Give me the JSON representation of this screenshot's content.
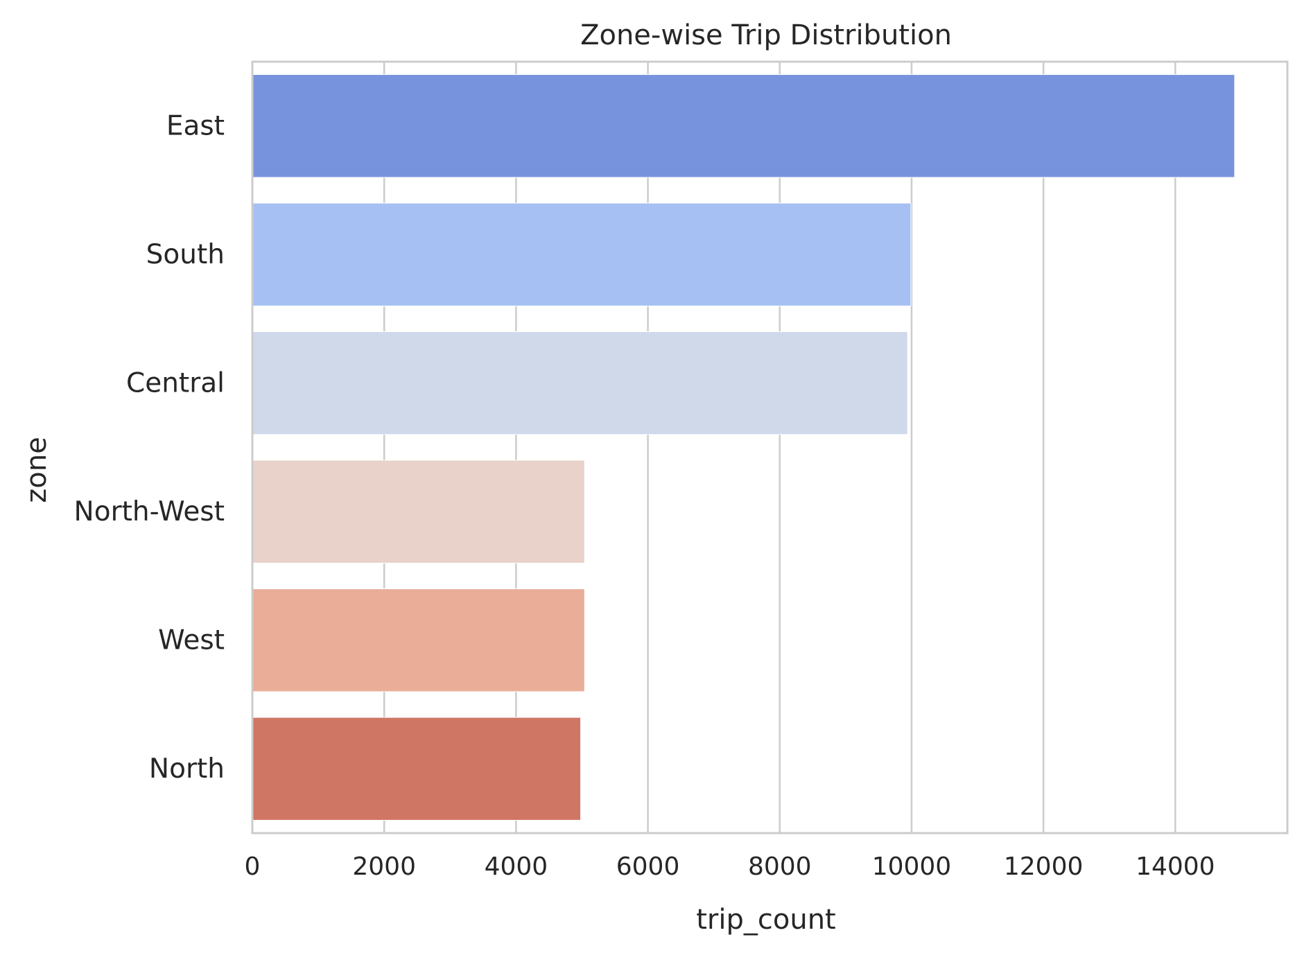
{
  "chart_data": {
    "type": "bar",
    "orientation": "horizontal",
    "title": "Zone-wise Trip Distribution",
    "xlabel": "trip_count",
    "ylabel": "zone",
    "categories": [
      "East",
      "South",
      "Central",
      "North-West",
      "West",
      "North"
    ],
    "values": [
      14900,
      9990,
      9940,
      5040,
      5040,
      4980
    ],
    "colors": [
      "#7893dd",
      "#a6c0f3",
      "#cfd9ea",
      "#e8d2c9",
      "#e9ad98",
      "#d07665"
    ],
    "xlim": [
      0,
      15700
    ],
    "xticks": [
      0,
      2000,
      4000,
      6000,
      8000,
      10000,
      12000,
      14000
    ],
    "grid": true,
    "legend": "none"
  }
}
